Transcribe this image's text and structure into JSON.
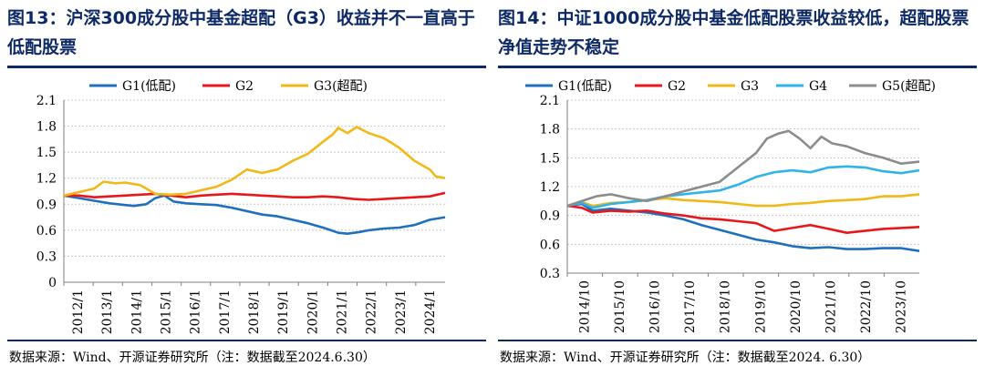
{
  "figures": [
    {
      "title": "图13：沪深300成分股中基金超配（G3）收益并不一直高于低配股票",
      "source": "数据来源：Wind、开源证券研究所（注：数据截至2024.6.30）"
    },
    {
      "title": "图14：中证1000成分股中基金低配股票收益较低，超配股票净值走势不稳定",
      "source": "数据来源：Wind、开源证券研究所（注：数据截至2024. 6.30）"
    }
  ],
  "chart_data": [
    {
      "type": "line",
      "title": "图13：沪深300成分股中基金超配（G3）收益并不一直高于低配股票",
      "xlabel": "",
      "ylabel": "",
      "x_ticks": [
        "2012/1",
        "2013/1",
        "2014/1",
        "2015/1",
        "2016/1",
        "2017/1",
        "2018/1",
        "2019/1",
        "2020/1",
        "2021/1",
        "2022/1",
        "2023/1",
        "2024/1"
      ],
      "x_range": [
        2012.0,
        2024.5
      ],
      "ylim": [
        0,
        2.1
      ],
      "y_ticks": [
        0,
        0.3,
        0.6,
        0.9,
        1.2,
        1.5,
        1.8,
        2.1
      ],
      "y_tick_labels": [
        "0",
        "0.3",
        "0.6",
        "0.9",
        "1.2",
        "1.5",
        "1.8",
        "2.1"
      ],
      "grid": true,
      "legend": "top",
      "series": [
        {
          "name": "G1(低配)",
          "color": "#1f6fbf",
          "points": [
            [
              2012.0,
              1.0
            ],
            [
              2012.5,
              0.97
            ],
            [
              2013.0,
              0.94
            ],
            [
              2013.5,
              0.91
            ],
            [
              2014.0,
              0.89
            ],
            [
              2014.3,
              0.88
            ],
            [
              2014.7,
              0.9
            ],
            [
              2015.0,
              0.97
            ],
            [
              2015.3,
              1.0
            ],
            [
              2015.6,
              0.93
            ],
            [
              2016.0,
              0.91
            ],
            [
              2016.5,
              0.9
            ],
            [
              2017.0,
              0.89
            ],
            [
              2017.5,
              0.86
            ],
            [
              2018.0,
              0.82
            ],
            [
              2018.5,
              0.78
            ],
            [
              2019.0,
              0.76
            ],
            [
              2019.5,
              0.72
            ],
            [
              2020.0,
              0.68
            ],
            [
              2020.5,
              0.63
            ],
            [
              2021.0,
              0.57
            ],
            [
              2021.3,
              0.56
            ],
            [
              2021.7,
              0.58
            ],
            [
              2022.0,
              0.6
            ],
            [
              2022.5,
              0.62
            ],
            [
              2023.0,
              0.63
            ],
            [
              2023.5,
              0.66
            ],
            [
              2024.0,
              0.72
            ],
            [
              2024.5,
              0.75
            ]
          ]
        },
        {
          "name": "G2",
          "color": "#e8171c",
          "points": [
            [
              2012.0,
              1.0
            ],
            [
              2012.5,
              1.0
            ],
            [
              2013.0,
              0.98
            ],
            [
              2013.5,
              0.99
            ],
            [
              2014.0,
              1.0
            ],
            [
              2014.5,
              1.01
            ],
            [
              2015.0,
              1.02
            ],
            [
              2015.5,
              1.0
            ],
            [
              2016.0,
              0.98
            ],
            [
              2016.5,
              1.0
            ],
            [
              2017.0,
              1.01
            ],
            [
              2017.5,
              1.02
            ],
            [
              2018.0,
              1.01
            ],
            [
              2018.5,
              1.0
            ],
            [
              2019.0,
              0.99
            ],
            [
              2019.5,
              0.98
            ],
            [
              2020.0,
              0.98
            ],
            [
              2020.5,
              0.99
            ],
            [
              2021.0,
              0.98
            ],
            [
              2021.5,
              0.96
            ],
            [
              2022.0,
              0.95
            ],
            [
              2022.5,
              0.96
            ],
            [
              2023.0,
              0.97
            ],
            [
              2023.5,
              0.98
            ],
            [
              2024.0,
              0.99
            ],
            [
              2024.5,
              1.03
            ]
          ]
        },
        {
          "name": "G3(超配)",
          "color": "#f2b817",
          "points": [
            [
              2012.0,
              1.0
            ],
            [
              2012.5,
              1.04
            ],
            [
              2013.0,
              1.08
            ],
            [
              2013.3,
              1.16
            ],
            [
              2013.7,
              1.14
            ],
            [
              2014.0,
              1.15
            ],
            [
              2014.5,
              1.12
            ],
            [
              2015.0,
              1.02
            ],
            [
              2015.5,
              1.01
            ],
            [
              2016.0,
              1.02
            ],
            [
              2016.5,
              1.06
            ],
            [
              2017.0,
              1.1
            ],
            [
              2017.5,
              1.18
            ],
            [
              2018.0,
              1.3
            ],
            [
              2018.5,
              1.26
            ],
            [
              2019.0,
              1.3
            ],
            [
              2019.5,
              1.4
            ],
            [
              2020.0,
              1.48
            ],
            [
              2020.5,
              1.62
            ],
            [
              2020.8,
              1.7
            ],
            [
              2021.0,
              1.78
            ],
            [
              2021.3,
              1.72
            ],
            [
              2021.6,
              1.79
            ],
            [
              2022.0,
              1.72
            ],
            [
              2022.5,
              1.66
            ],
            [
              2023.0,
              1.55
            ],
            [
              2023.5,
              1.4
            ],
            [
              2024.0,
              1.3
            ],
            [
              2024.2,
              1.22
            ],
            [
              2024.5,
              1.2
            ]
          ]
        }
      ]
    },
    {
      "type": "line",
      "title": "图14：中证1000成分股中基金低配股票收益较低，超配股票净值走势不稳定",
      "xlabel": "",
      "ylabel": "",
      "x_ticks": [
        "2014/10",
        "2015/10",
        "2016/10",
        "2017/10",
        "2018/10",
        "2019/10",
        "2020/10",
        "2021/10",
        "2022/10",
        "2023/10"
      ],
      "x_range": [
        2014.8,
        2024.5
      ],
      "ylim": [
        0.3,
        2.1
      ],
      "y_ticks": [
        0.3,
        0.6,
        0.9,
        1.2,
        1.5,
        1.8,
        2.1
      ],
      "y_tick_labels": [
        "0.3",
        "0.6",
        "0.9",
        "1.2",
        "1.5",
        "1.8",
        "2.1"
      ],
      "grid": true,
      "legend": "top",
      "series": [
        {
          "name": "G1(低配)",
          "color": "#1f6fbf",
          "points": [
            [
              2014.8,
              1.0
            ],
            [
              2015.2,
              1.02
            ],
            [
              2015.5,
              0.95
            ],
            [
              2016.0,
              0.97
            ],
            [
              2016.5,
              0.95
            ],
            [
              2017.0,
              0.93
            ],
            [
              2017.5,
              0.9
            ],
            [
              2018.0,
              0.86
            ],
            [
              2018.5,
              0.8
            ],
            [
              2019.0,
              0.75
            ],
            [
              2019.5,
              0.7
            ],
            [
              2020.0,
              0.65
            ],
            [
              2020.5,
              0.62
            ],
            [
              2021.0,
              0.58
            ],
            [
              2021.5,
              0.56
            ],
            [
              2022.0,
              0.57
            ],
            [
              2022.5,
              0.55
            ],
            [
              2023.0,
              0.55
            ],
            [
              2023.5,
              0.56
            ],
            [
              2024.0,
              0.56
            ],
            [
              2024.5,
              0.53
            ]
          ]
        },
        {
          "name": "G2",
          "color": "#e8171c",
          "points": [
            [
              2014.8,
              1.0
            ],
            [
              2015.2,
              0.98
            ],
            [
              2015.5,
              0.93
            ],
            [
              2016.0,
              0.95
            ],
            [
              2016.5,
              0.94
            ],
            [
              2017.0,
              0.95
            ],
            [
              2017.5,
              0.92
            ],
            [
              2018.0,
              0.9
            ],
            [
              2018.5,
              0.87
            ],
            [
              2019.0,
              0.86
            ],
            [
              2019.5,
              0.84
            ],
            [
              2020.0,
              0.82
            ],
            [
              2020.5,
              0.74
            ],
            [
              2021.0,
              0.77
            ],
            [
              2021.5,
              0.8
            ],
            [
              2022.0,
              0.76
            ],
            [
              2022.5,
              0.72
            ],
            [
              2023.0,
              0.74
            ],
            [
              2023.5,
              0.76
            ],
            [
              2024.0,
              0.77
            ],
            [
              2024.5,
              0.78
            ]
          ]
        },
        {
          "name": "G3",
          "color": "#f2b817",
          "points": [
            [
              2014.8,
              1.0
            ],
            [
              2015.2,
              1.04
            ],
            [
              2015.5,
              1.0
            ],
            [
              2016.0,
              1.03
            ],
            [
              2016.5,
              1.04
            ],
            [
              2017.0,
              1.06
            ],
            [
              2017.5,
              1.08
            ],
            [
              2018.0,
              1.06
            ],
            [
              2018.5,
              1.05
            ],
            [
              2019.0,
              1.04
            ],
            [
              2019.5,
              1.02
            ],
            [
              2020.0,
              1.0
            ],
            [
              2020.5,
              1.0
            ],
            [
              2021.0,
              1.02
            ],
            [
              2021.5,
              1.03
            ],
            [
              2022.0,
              1.05
            ],
            [
              2022.5,
              1.06
            ],
            [
              2023.0,
              1.07
            ],
            [
              2023.5,
              1.1
            ],
            [
              2024.0,
              1.1
            ],
            [
              2024.5,
              1.12
            ]
          ]
        },
        {
          "name": "G4",
          "color": "#2fb3e8",
          "points": [
            [
              2014.8,
              1.0
            ],
            [
              2015.2,
              1.03
            ],
            [
              2015.5,
              0.98
            ],
            [
              2016.0,
              1.02
            ],
            [
              2016.5,
              1.04
            ],
            [
              2017.0,
              1.06
            ],
            [
              2017.5,
              1.1
            ],
            [
              2018.0,
              1.12
            ],
            [
              2018.5,
              1.14
            ],
            [
              2019.0,
              1.16
            ],
            [
              2019.5,
              1.22
            ],
            [
              2020.0,
              1.3
            ],
            [
              2020.5,
              1.35
            ],
            [
              2021.0,
              1.37
            ],
            [
              2021.5,
              1.35
            ],
            [
              2022.0,
              1.4
            ],
            [
              2022.5,
              1.41
            ],
            [
              2023.0,
              1.4
            ],
            [
              2023.5,
              1.36
            ],
            [
              2024.0,
              1.34
            ],
            [
              2024.5,
              1.37
            ]
          ]
        },
        {
          "name": "G5(超配)",
          "color": "#8c8c8c",
          "points": [
            [
              2014.8,
              1.0
            ],
            [
              2015.2,
              1.05
            ],
            [
              2015.6,
              1.1
            ],
            [
              2016.0,
              1.12
            ],
            [
              2016.5,
              1.08
            ],
            [
              2017.0,
              1.05
            ],
            [
              2017.5,
              1.1
            ],
            [
              2018.0,
              1.15
            ],
            [
              2018.5,
              1.2
            ],
            [
              2019.0,
              1.25
            ],
            [
              2019.5,
              1.4
            ],
            [
              2020.0,
              1.55
            ],
            [
              2020.3,
              1.7
            ],
            [
              2020.6,
              1.75
            ],
            [
              2020.9,
              1.78
            ],
            [
              2021.2,
              1.7
            ],
            [
              2021.5,
              1.6
            ],
            [
              2021.8,
              1.72
            ],
            [
              2022.1,
              1.65
            ],
            [
              2022.5,
              1.62
            ],
            [
              2023.0,
              1.55
            ],
            [
              2023.5,
              1.5
            ],
            [
              2024.0,
              1.44
            ],
            [
              2024.5,
              1.46
            ]
          ]
        }
      ]
    }
  ]
}
